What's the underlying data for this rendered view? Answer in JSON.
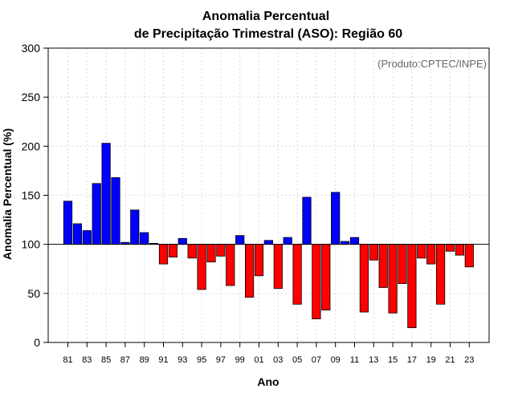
{
  "chart_data": {
    "type": "bar",
    "title": "Anomalia Percentual",
    "subtitle": "de Precipitação Trimestral (ASO): Região 60",
    "xlabel": "Ano",
    "ylabel": "Anomalia Percentual (%)",
    "annotation": "(Produto:CPTEC/INPE)",
    "ylim": [
      0,
      300
    ],
    "yticks": [
      0,
      50,
      100,
      150,
      200,
      250,
      300
    ],
    "baseline": 100,
    "grid": true,
    "colors": {
      "above": "#0000ff",
      "below": "#ff0000",
      "edge": "#000000",
      "baseline": "#000000"
    },
    "categories": [
      "81",
      "82",
      "83",
      "84",
      "85",
      "86",
      "87",
      "88",
      "89",
      "90",
      "91",
      "92",
      "93",
      "94",
      "95",
      "96",
      "97",
      "98",
      "99",
      "00",
      "01",
      "02",
      "03",
      "04",
      "05",
      "06",
      "07",
      "08",
      "09",
      "10",
      "11",
      "12",
      "13",
      "14",
      "15",
      "16",
      "17",
      "18",
      "19",
      "20",
      "21",
      "22",
      "23"
    ],
    "tick_labels": [
      "81",
      "83",
      "85",
      "87",
      "89",
      "91",
      "93",
      "95",
      "97",
      "99",
      "01",
      "03",
      "05",
      "07",
      "09",
      "11",
      "13",
      "15",
      "17",
      "19",
      "21",
      "23"
    ],
    "values": [
      144,
      121,
      114,
      162,
      203,
      168,
      102,
      135,
      112,
      101,
      80,
      87,
      106,
      86,
      54,
      82,
      88,
      58,
      109,
      46,
      68,
      104,
      55,
      107,
      39,
      148,
      24,
      33,
      153,
      103,
      107,
      31,
      84,
      56,
      30,
      60,
      15,
      86,
      80,
      39,
      93,
      89,
      77
    ]
  }
}
